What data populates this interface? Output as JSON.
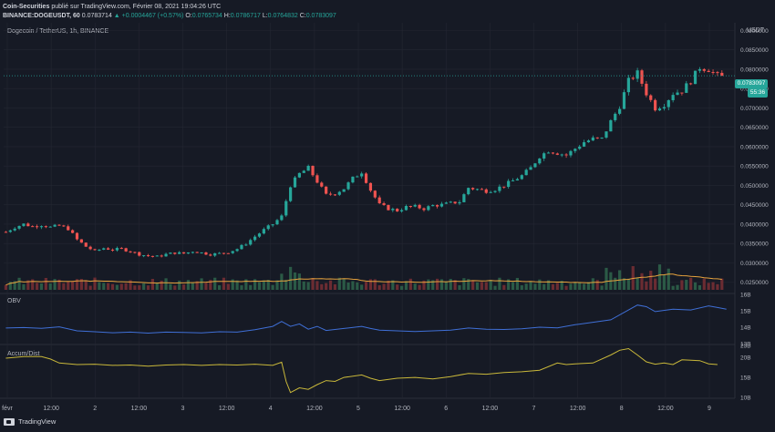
{
  "publisher": {
    "name": "Coin-Securities",
    "text": "publié sur TradingView.com, Février 08, 2021 19:04:26 UTC"
  },
  "symbol_line": {
    "symbol": "BINANCE:DOGEUSDT, 60",
    "last": "0.0783714",
    "change": "▲ +0.0004467 (+0.57%)",
    "o_label": "O:",
    "o": "0.0765734",
    "h_label": "H:",
    "h": "0.0786717",
    "l_label": "L:",
    "l": "0.0764832",
    "c_label": "C:",
    "c": "0.0783097"
  },
  "instrument_title": "Dogecoin / TetherUS, 1h, BINANCE",
  "currency": "USDT",
  "price_badge": "0.0783097",
  "countdown_badge": "55:36",
  "pane_labels": {
    "obv": "OBV",
    "ad": "Accum/Dist"
  },
  "footer_brand": "TradingView",
  "colors": {
    "bg": "#161a25",
    "up": "#26a69a",
    "down": "#ef5350",
    "grid": "#242733",
    "ma": "#e8a33d",
    "obv": "#3f6fd6",
    "ad": "#c9b83a",
    "badge": "#26a69a"
  },
  "chart_data": [
    {
      "type": "candlestick",
      "title": "Dogecoin / TetherUS, 1h, BINANCE",
      "ylabel": "USDT",
      "ylim": [
        0.0235,
        0.092
      ],
      "yticks": [
        "0.0900000",
        "0.0850000",
        "0.0800000",
        "0.0750000",
        "0.0700000",
        "0.0650000",
        "0.0600000",
        "0.0550000",
        "0.0500000",
        "0.0450000",
        "0.0400000",
        "0.0350000",
        "0.0300000",
        "0.0250000"
      ],
      "x_ticks": [
        "févr",
        "12:00",
        "2",
        "12:00",
        "3",
        "12:00",
        "4",
        "12:00",
        "5",
        "12:00",
        "6",
        "12:00",
        "7",
        "12:00",
        "8",
        "12:00",
        "9"
      ],
      "close_path": [
        [
          0,
          0.038
        ],
        [
          2,
          0.0392
        ],
        [
          4,
          0.04
        ],
        [
          6,
          0.0394
        ],
        [
          8,
          0.0398
        ],
        [
          10,
          0.0392
        ],
        [
          12,
          0.0396
        ],
        [
          14,
          0.0388
        ],
        [
          16,
          0.036
        ],
        [
          18,
          0.0342
        ],
        [
          20,
          0.033
        ],
        [
          22,
          0.0338
        ],
        [
          24,
          0.0334
        ],
        [
          26,
          0.0336
        ],
        [
          28,
          0.033
        ],
        [
          30,
          0.0322
        ],
        [
          32,
          0.0318
        ],
        [
          34,
          0.0316
        ],
        [
          36,
          0.0322
        ],
        [
          38,
          0.0326
        ],
        [
          40,
          0.0324
        ],
        [
          42,
          0.033
        ],
        [
          44,
          0.0326
        ],
        [
          46,
          0.0322
        ],
        [
          48,
          0.0324
        ],
        [
          50,
          0.0328
        ],
        [
          52,
          0.0336
        ],
        [
          54,
          0.035
        ],
        [
          56,
          0.0368
        ],
        [
          58,
          0.0385
        ],
        [
          60,
          0.04
        ],
        [
          62,
          0.042
        ],
        [
          64,
          0.05
        ],
        [
          66,
          0.053
        ],
        [
          68,
          0.0545
        ],
        [
          70,
          0.051
        ],
        [
          72,
          0.0475
        ],
        [
          74,
          0.048
        ],
        [
          76,
          0.0492
        ],
        [
          78,
          0.0518
        ],
        [
          80,
          0.0535
        ],
        [
          82,
          0.0488
        ],
        [
          84,
          0.045
        ],
        [
          86,
          0.044
        ],
        [
          88,
          0.0435
        ],
        [
          90,
          0.0444
        ],
        [
          92,
          0.0445
        ],
        [
          94,
          0.044
        ],
        [
          96,
          0.0448
        ],
        [
          98,
          0.045
        ],
        [
          100,
          0.0454
        ],
        [
          102,
          0.0458
        ],
        [
          104,
          0.0494
        ],
        [
          106,
          0.049
        ],
        [
          108,
          0.0486
        ],
        [
          110,
          0.049
        ],
        [
          112,
          0.05
        ],
        [
          114,
          0.0512
        ],
        [
          116,
          0.0525
        ],
        [
          118,
          0.0545
        ],
        [
          120,
          0.0575
        ],
        [
          122,
          0.059
        ],
        [
          124,
          0.0584
        ],
        [
          126,
          0.0578
        ],
        [
          128,
          0.0595
        ],
        [
          130,
          0.0612
        ],
        [
          132,
          0.062
        ],
        [
          134,
          0.062
        ],
        [
          136,
          0.0665
        ],
        [
          138,
          0.0705
        ],
        [
          140,
          0.077
        ],
        [
          142,
          0.079
        ],
        [
          144,
          0.0738
        ],
        [
          146,
          0.07
        ],
        [
          148,
          0.071
        ],
        [
          150,
          0.0738
        ],
        [
          152,
          0.0745
        ],
        [
          154,
          0.077
        ],
        [
          156,
          0.0805
        ],
        [
          158,
          0.08
        ],
        [
          160,
          0.0783
        ]
      ],
      "last_price": 0.0783097,
      "volume_ma": "orange"
    },
    {
      "type": "line",
      "title": "OBV",
      "ylim": [
        13.0,
        16.0
      ],
      "unit": "B",
      "yticks": [
        "16B",
        "15B",
        "14B",
        "13B"
      ],
      "values": [
        [
          0,
          13.95
        ],
        [
          4,
          13.98
        ],
        [
          8,
          13.93
        ],
        [
          12,
          14.02
        ],
        [
          16,
          13.78
        ],
        [
          20,
          13.72
        ],
        [
          24,
          13.66
        ],
        [
          28,
          13.7
        ],
        [
          32,
          13.64
        ],
        [
          36,
          13.7
        ],
        [
          40,
          13.68
        ],
        [
          44,
          13.65
        ],
        [
          48,
          13.72
        ],
        [
          52,
          13.7
        ],
        [
          56,
          13.85
        ],
        [
          60,
          14.05
        ],
        [
          62,
          14.35
        ],
        [
          64,
          14.05
        ],
        [
          66,
          14.2
        ],
        [
          68,
          13.88
        ],
        [
          70,
          14.05
        ],
        [
          72,
          13.8
        ],
        [
          76,
          13.92
        ],
        [
          80,
          14.05
        ],
        [
          82,
          13.92
        ],
        [
          84,
          13.82
        ],
        [
          88,
          13.78
        ],
        [
          92,
          13.74
        ],
        [
          96,
          13.78
        ],
        [
          100,
          13.82
        ],
        [
          104,
          13.95
        ],
        [
          108,
          13.88
        ],
        [
          112,
          13.86
        ],
        [
          116,
          13.9
        ],
        [
          120,
          14.0
        ],
        [
          124,
          13.96
        ],
        [
          128,
          14.15
        ],
        [
          132,
          14.3
        ],
        [
          136,
          14.45
        ],
        [
          140,
          15.05
        ],
        [
          142,
          15.35
        ],
        [
          144,
          15.25
        ],
        [
          146,
          14.95
        ],
        [
          150,
          15.1
        ],
        [
          154,
          15.05
        ],
        [
          158,
          15.3
        ],
        [
          160,
          15.2
        ],
        [
          162,
          15.1
        ]
      ]
    },
    {
      "type": "line",
      "title": "Accum/Dist",
      "ylim": [
        10.0,
        23.0
      ],
      "unit": "B",
      "yticks": [
        "23B",
        "20B",
        "15B",
        "10B"
      ],
      "values": [
        [
          0,
          19.8
        ],
        [
          4,
          20.2
        ],
        [
          8,
          20.2
        ],
        [
          10,
          19.6
        ],
        [
          12,
          18.6
        ],
        [
          16,
          18.2
        ],
        [
          20,
          18.3
        ],
        [
          24,
          18.0
        ],
        [
          28,
          18.1
        ],
        [
          32,
          17.8
        ],
        [
          36,
          18.1
        ],
        [
          40,
          18.2
        ],
        [
          44,
          18.0
        ],
        [
          48,
          18.2
        ],
        [
          52,
          18.1
        ],
        [
          56,
          18.3
        ],
        [
          60,
          18.0
        ],
        [
          62,
          18.8
        ],
        [
          63,
          14.0
        ],
        [
          64,
          11.2
        ],
        [
          66,
          12.4
        ],
        [
          68,
          12.0
        ],
        [
          70,
          13.2
        ],
        [
          72,
          14.2
        ],
        [
          74,
          14.0
        ],
        [
          76,
          15.0
        ],
        [
          80,
          15.6
        ],
        [
          82,
          14.8
        ],
        [
          84,
          14.2
        ],
        [
          88,
          14.8
        ],
        [
          92,
          15.0
        ],
        [
          96,
          14.6
        ],
        [
          100,
          15.2
        ],
        [
          104,
          16.0
        ],
        [
          108,
          15.8
        ],
        [
          112,
          16.2
        ],
        [
          116,
          16.4
        ],
        [
          120,
          16.8
        ],
        [
          124,
          18.6
        ],
        [
          126,
          18.2
        ],
        [
          128,
          18.4
        ],
        [
          132,
          18.6
        ],
        [
          136,
          20.6
        ],
        [
          138,
          21.8
        ],
        [
          140,
          22.2
        ],
        [
          142,
          20.6
        ],
        [
          144,
          18.9
        ],
        [
          146,
          18.3
        ],
        [
          148,
          18.6
        ],
        [
          150,
          18.2
        ],
        [
          152,
          19.4
        ],
        [
          156,
          19.2
        ],
        [
          158,
          18.4
        ],
        [
          160,
          18.2
        ]
      ]
    }
  ]
}
